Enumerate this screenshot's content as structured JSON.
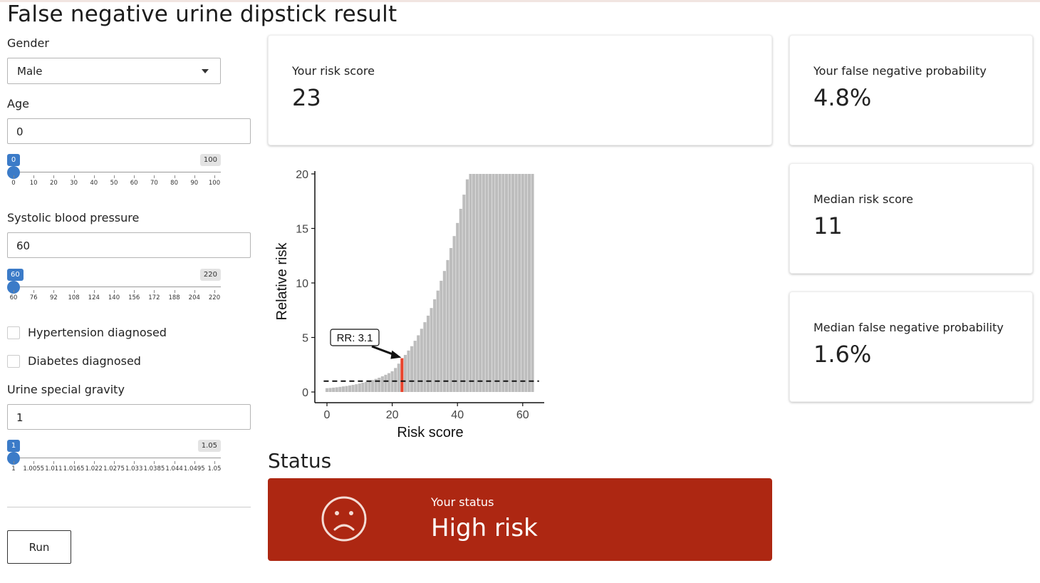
{
  "app": {
    "title": "False negative urine dipstick result"
  },
  "inputs": {
    "gender": {
      "label": "Gender",
      "value": "Male"
    },
    "age": {
      "label": "Age",
      "value": "0",
      "min": "0",
      "max": "100",
      "ticks": [
        "0",
        "10",
        "20",
        "30",
        "40",
        "50",
        "60",
        "70",
        "80",
        "90",
        "100"
      ]
    },
    "sbp": {
      "label": "Systolic blood pressure",
      "value": "60",
      "min": "60",
      "max": "220",
      "ticks": [
        "60",
        "76",
        "92",
        "108",
        "124",
        "140",
        "156",
        "172",
        "188",
        "204",
        "220"
      ]
    },
    "hypertension": {
      "label": "Hypertension diagnosed",
      "checked": false
    },
    "diabetes": {
      "label": "Diabetes diagnosed",
      "checked": false
    },
    "gravity": {
      "label": "Urine special gravity",
      "value": "1",
      "min": "1",
      "max": "1.05",
      "ticks": [
        "1",
        "1.0055",
        "1.011",
        "1.0165",
        "1.022",
        "1.0275",
        "1.033",
        "1.0385",
        "1.044",
        "1.0495",
        "1.05"
      ]
    },
    "run_label": "Run"
  },
  "cards": {
    "risk_score": {
      "title": "Your risk score",
      "value": "23"
    },
    "fn_prob": {
      "title": "Your false negative probability",
      "value": "4.8%"
    },
    "median_risk": {
      "title": "Median risk score",
      "value": "11"
    },
    "median_fn": {
      "title": "Median false negative probability",
      "value": "1.6%"
    }
  },
  "status": {
    "heading": "Status",
    "label": "Your status",
    "value": "High risk",
    "icon": "sad-face-icon",
    "color": "#ad2712"
  },
  "chart_data": {
    "type": "bar",
    "xlabel": "Risk score",
    "ylabel": "Relative risk",
    "xlim": [
      0,
      63
    ],
    "ylim": [
      0,
      20
    ],
    "xticks": [
      0,
      20,
      40,
      60
    ],
    "yticks": [
      0,
      5,
      10,
      15,
      20
    ],
    "reference_line": 1,
    "highlight_x": 23,
    "bar_color": "#bdbdbd",
    "highlight_color": "#e8432c",
    "annotation": "RR: 3.1",
    "x": [
      0,
      1,
      2,
      3,
      4,
      5,
      6,
      7,
      8,
      9,
      10,
      11,
      12,
      13,
      14,
      15,
      16,
      17,
      18,
      19,
      20,
      21,
      22,
      23,
      24,
      25,
      26,
      27,
      28,
      29,
      30,
      31,
      32,
      33,
      34,
      35,
      36,
      37,
      38,
      39,
      40,
      41,
      42,
      43,
      44,
      45,
      46,
      47,
      48,
      49,
      50,
      51,
      52,
      53,
      54,
      55,
      56,
      57,
      58,
      59,
      60,
      61,
      62,
      63
    ],
    "values": [
      0.35,
      0.37,
      0.4,
      0.43,
      0.47,
      0.51,
      0.55,
      0.6,
      0.65,
      0.71,
      0.78,
      0.85,
      0.93,
      1.0,
      1.1,
      1.2,
      1.31,
      1.44,
      1.58,
      1.73,
      1.9,
      2.2,
      2.6,
      3.1,
      3.4,
      3.8,
      4.2,
      4.7,
      5.2,
      5.8,
      6.4,
      7.0,
      7.7,
      8.5,
      9.3,
      10.2,
      11.1,
      12.1,
      13.2,
      14.3,
      15.5,
      16.8,
      18.1,
      19.5,
      20,
      20,
      20,
      20,
      20,
      20,
      20,
      20,
      20,
      20,
      20,
      20,
      20,
      20,
      20,
      20,
      20,
      20,
      20,
      20
    ]
  }
}
